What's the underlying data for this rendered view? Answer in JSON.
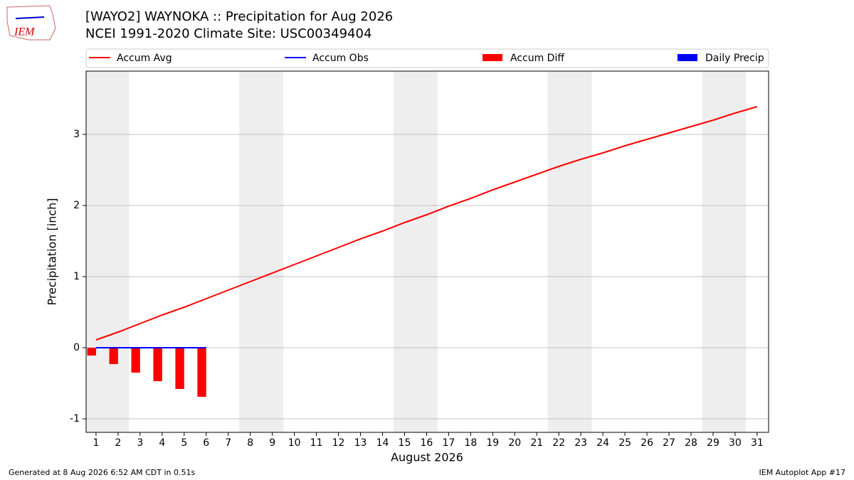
{
  "chart_data": {
    "type": "combo",
    "title": "[WAYO2] WAYNOKA :: Precipitation for Aug 2026",
    "subtitle": "NCEI 1991-2020 Climate Site: USC00349404",
    "logo_text": "IEM",
    "xlabel": "August 2026",
    "ylabel": "Precipitation [inch]",
    "footer_left": "Generated at 8 Aug 2026 6:52 AM CDT in 0.51s",
    "footer_right": "IEM Autoplot App #17",
    "x": [
      1,
      2,
      3,
      4,
      5,
      6,
      7,
      8,
      9,
      10,
      11,
      12,
      13,
      14,
      15,
      16,
      17,
      18,
      19,
      20,
      21,
      22,
      23,
      24,
      25,
      26,
      27,
      28,
      29,
      30,
      31
    ],
    "series": [
      {
        "name": "Accum Avg",
        "type": "line",
        "color": "#ff0000",
        "values": [
          0.11,
          0.22,
          0.34,
          0.46,
          0.57,
          0.69,
          0.81,
          0.93,
          1.05,
          1.17,
          1.29,
          1.41,
          1.53,
          1.64,
          1.76,
          1.87,
          1.99,
          2.1,
          2.22,
          2.33,
          2.44,
          2.55,
          2.65,
          2.74,
          2.84,
          2.93,
          3.02,
          3.11,
          3.2,
          3.3,
          3.39
        ]
      },
      {
        "name": "Accum Obs",
        "type": "line",
        "color": "#0000ff",
        "values": [
          0,
          0,
          0,
          0,
          0,
          0,
          null,
          null,
          null,
          null,
          null,
          null,
          null,
          null,
          null,
          null,
          null,
          null,
          null,
          null,
          null,
          null,
          null,
          null,
          null,
          null,
          null,
          null,
          null,
          null,
          null
        ]
      },
      {
        "name": "Accum Diff",
        "type": "bar",
        "color": "#ff0000",
        "values": [
          -0.11,
          -0.23,
          -0.35,
          -0.47,
          -0.58,
          -0.69,
          null,
          null,
          null,
          null,
          null,
          null,
          null,
          null,
          null,
          null,
          null,
          null,
          null,
          null,
          null,
          null,
          null,
          null,
          null,
          null,
          null,
          null,
          null,
          null,
          null
        ]
      },
      {
        "name": "Daily Precip",
        "type": "bar",
        "color": "#0000ff",
        "values": [
          0,
          0,
          0,
          0,
          0,
          0,
          null,
          null,
          null,
          null,
          null,
          null,
          null,
          null,
          null,
          null,
          null,
          null,
          null,
          null,
          null,
          null,
          null,
          null,
          null,
          null,
          null,
          null,
          null,
          null,
          null
        ]
      }
    ],
    "shaded_x_ranges": [
      [
        0.5,
        2.5
      ],
      [
        7.5,
        9.5
      ],
      [
        14.5,
        16.5
      ],
      [
        21.5,
        23.5
      ],
      [
        28.5,
        30.5
      ]
    ],
    "xlim": [
      0.55,
      31.52
    ],
    "xticks": [
      1,
      2,
      3,
      4,
      5,
      6,
      7,
      8,
      9,
      10,
      11,
      12,
      13,
      14,
      15,
      16,
      17,
      18,
      19,
      20,
      21,
      22,
      23,
      24,
      25,
      26,
      27,
      28,
      29,
      30,
      31
    ],
    "ylim": [
      -1.19,
      3.89
    ],
    "yticks": [
      -1,
      0,
      1,
      2,
      3
    ],
    "grid": true
  }
}
